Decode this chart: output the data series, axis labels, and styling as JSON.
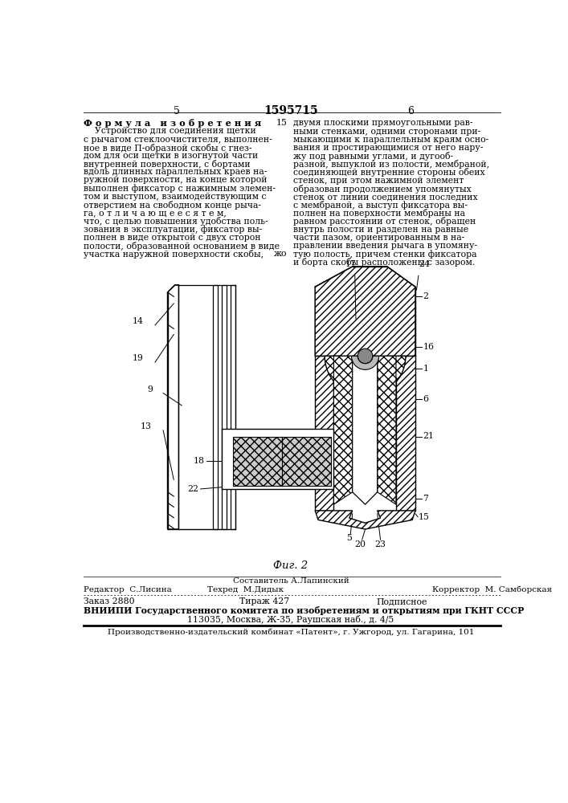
{
  "page_number_left": "5",
  "page_number_center": "1595715",
  "page_number_right": "6",
  "formula_header": "Ф о р м у л а   и з о б р е т е н и я",
  "left_col": [
    "    Устройство для соединения щетки",
    "с рычагом стеклоочистителя, выполнен-",
    "ное в виде П-образной скобы с гнез-",
    "дом для оси щетки в изогнутой части",
    "внутренней поверхности, с бортами",
    "вдоль длинных параллельных краев на-",
    "ружной поверхности, на конце которой",
    "выполнен фиксатор с нажимным элемен-",
    "том и выступом, взаимодействующим с",
    "отверстием на свободном конце рыча-",
    "га, о т л и ч а ю щ е е с я т е м,",
    "что, с целью повышения удобства поль-",
    "зования в эксплуатации, фиксатор вы-",
    "полнен в виде открытой с двух сторон",
    "полости, образованной основанием в виде",
    "участка наружной поверхности скобы,"
  ],
  "right_col": [
    "двумя плоскими прямоугольными рав-",
    "ными стенками, одними сторонами при-",
    "мыкающими к параллельным краям осно-",
    "вания и простирающимися от него нару-",
    "жу под равными углами, и дугооб-",
    "разной, выпуклой из полости, мембраной,",
    "соединяющей внутренние стороны обеих",
    "стенок, при этом нажимной элемент",
    "образован продолжением упомянутых",
    "стенок от линии соединения последних",
    "с мембраной, а выступ фиксатора вы-",
    "полнен на поверхности мембраны на",
    "равном расстоянии от стенок, обращен",
    "внутрь полости и разделен на равные",
    "части пазом, ориентированным в на-",
    "правлении введения рычага в упомяну-",
    "тую полость, причем стенки фиксатора",
    "и борта скобы расположены с зазором."
  ],
  "fig_label": "Фиг. 2",
  "footer_editor_lbl": "Редактор  С.Лисина",
  "footer_composer_lbl": "Составитель А.Лапинский",
  "footer_techred_lbl": "Техред М.Дидык",
  "footer_corrector_lbl": "Корректор М. Самборская",
  "footer_composer_top": "Составитель А.Лапинский",
  "footer_order": "Заказ 2880",
  "footer_tirazh": "Тираж 427",
  "footer_podpisnoe": "Подписное",
  "footer_vniipii": "ВНИИПИ Государственного комитета по изобретениям и открытиям при ГКНТ СССР",
  "footer_address": "113035, Москва, Ж-35, Раушская наб., д. 4/5",
  "footer_patent": "Производственно-издательский комбинат «Патент», г. Ужгород, ул. Гагарина, 101",
  "bg_color": "#ffffff"
}
